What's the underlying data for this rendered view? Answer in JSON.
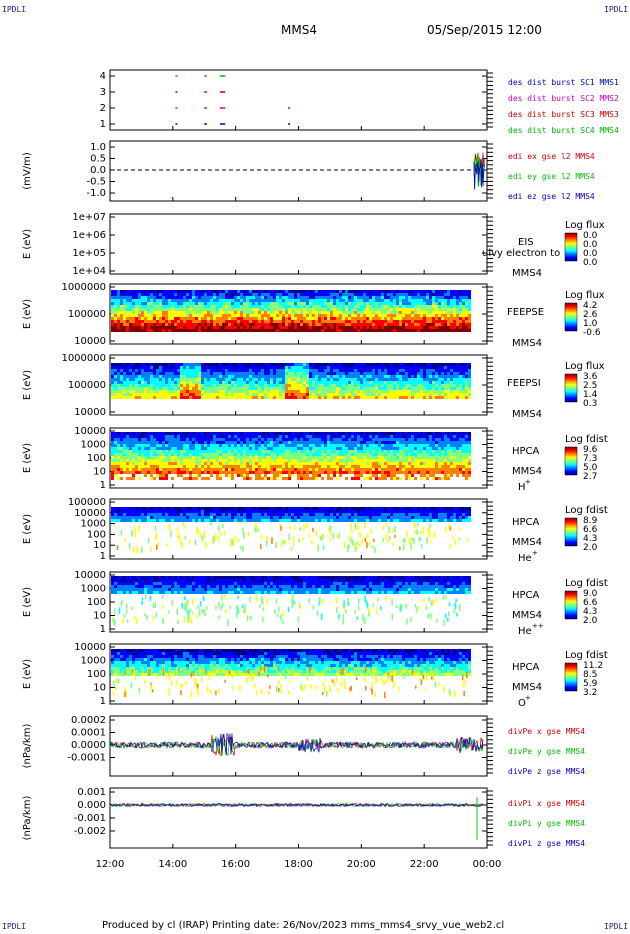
{
  "corners": {
    "tl": "IPDLI",
    "tr": "IPDLI",
    "bl": "IPDLI",
    "br": "IPDLI"
  },
  "header": {
    "spacecraft": "MMS4",
    "datetime": "05/Sep/2015 12:00"
  },
  "footer": {
    "text": "Produced by cl (IRAP)   Printing date: 26/Nov/2023   mms_mms4_srvy_vue_web2.cl"
  },
  "xaxis": {
    "ticks": [
      "12:00",
      "14:00",
      "16:00",
      "18:00",
      "20:00",
      "22:00",
      "00:00"
    ]
  },
  "colors": {
    "sc1": "#0000c0",
    "sc2": "#c000c0",
    "sc3": "#c00000",
    "sc4": "#00b000",
    "x": "#d00000",
    "y": "#00c000",
    "z": "#0000c0"
  },
  "panels": [
    {
      "id": "burst",
      "ticks": [
        "4",
        "3",
        "2",
        "1"
      ],
      "legend": [
        "des dist burst SC1 MMS1",
        "des dist burst SC2 MMS2",
        "des dist burst SC3 MMS3",
        "des dist burst SC4 MMS4"
      ]
    },
    {
      "id": "edi",
      "ylabel": "(mV/m)",
      "ticks": [
        "1.0",
        "0.5",
        "0.0",
        "-0.5",
        "-1.0"
      ],
      "legend": [
        "edi ex gse l2 MMS4",
        "edi ey gse l2 MMS4",
        "edi ez gse l2 MMS4"
      ]
    },
    {
      "id": "eis",
      "ylabel": "E (eV)",
      "ticks": [
        "1e+07",
        "1e+06",
        "1e+05",
        "1e+04"
      ],
      "name": "EIS",
      "extra": "MMS4",
      "overlay": "ulvy electron to",
      "cbar_title": "Log flux",
      "cbar_ticks": [
        "0.0",
        "0.0",
        "0.0",
        "0.0"
      ]
    },
    {
      "id": "feepse",
      "ylabel": "E (eV)",
      "ticks": [
        "1000000",
        "100000",
        "10000"
      ],
      "name": "FEEPSE",
      "extra": "MMS4",
      "cbar_title": "Log flux",
      "cbar_ticks": [
        "4.2",
        "2.6",
        "1.0",
        "-0.6"
      ]
    },
    {
      "id": "feepsi",
      "ylabel": "E (eV)",
      "ticks": [
        "1000000",
        "100000",
        "10000"
      ],
      "name": "FEEPSI",
      "extra": "MMS4",
      "cbar_title": "Log flux",
      "cbar_ticks": [
        "3.6",
        "2.5",
        "1.4",
        "0.3"
      ]
    },
    {
      "id": "hpca_h",
      "ylabel": "E (eV)",
      "ticks": [
        "10000",
        "1000",
        "100",
        "10",
        "1"
      ],
      "name": "HPCA",
      "extra": "MMS4",
      "species": "H",
      "charge": "+",
      "cbar_title": "Log fdist",
      "cbar_ticks": [
        "9.6",
        "7.3",
        "5.0",
        "2.7"
      ]
    },
    {
      "id": "hpca_he",
      "ylabel": "E (eV)",
      "ticks": [
        "100000",
        "10000",
        "1000",
        "100",
        "10",
        "1"
      ],
      "name": "HPCA",
      "extra": "MMS4",
      "species": "He",
      "charge": "+",
      "cbar_title": "Log fdist",
      "cbar_ticks": [
        "8.9",
        "6.6",
        "4.3",
        "2.0"
      ]
    },
    {
      "id": "hpca_hepp",
      "ylabel": "E (eV)",
      "ticks": [
        "10000",
        "1000",
        "100",
        "10",
        "1"
      ],
      "name": "HPCA",
      "extra": "MMS4",
      "species": "He",
      "charge": "++",
      "cbar_title": "Log fdist",
      "cbar_ticks": [
        "9.0",
        "6.6",
        "4.3",
        "2.0"
      ]
    },
    {
      "id": "hpca_o",
      "ylabel": "E (eV)",
      "ticks": [
        "10000",
        "1000",
        "100",
        "10",
        "1"
      ],
      "name": "HPCA",
      "extra": "MMS4",
      "species": "O",
      "charge": "+",
      "cbar_title": "Log fdist",
      "cbar_ticks": [
        "11.2",
        "8.5",
        "5.9",
        "3.2"
      ]
    },
    {
      "id": "divpe",
      "ylabel": "(nPa/km)",
      "ticks": [
        "0.0002",
        "0.0001",
        "0.0000",
        "-0.0001"
      ],
      "legend": [
        "divPe x gse MMS4",
        "divPe y gse MMS4",
        "divPe z gse MMS4"
      ]
    },
    {
      "id": "divpi",
      "ylabel": "(nPa/km)",
      "ticks": [
        "0.001",
        "0.000",
        "-0.001",
        "-0.002"
      ],
      "legend": [
        "divPi x gse MMS4",
        "divPi y gse MMS4",
        "divPi z gse MMS4"
      ]
    }
  ],
  "chart_data": {
    "type": "line",
    "xrange": [
      "05/Sep/2015 12:00",
      "06/Sep/2015 00:00"
    ],
    "burst_segments": [
      {
        "sc": 4,
        "start": "14:05",
        "end": "14:08"
      },
      {
        "sc": 4,
        "start": "15:00",
        "end": "15:05"
      },
      {
        "sc": 4,
        "start": "15:30",
        "end": "15:40"
      },
      {
        "sc": 3,
        "start": "14:05",
        "end": "14:08"
      },
      {
        "sc": 3,
        "start": "15:00",
        "end": "15:05"
      },
      {
        "sc": 3,
        "start": "15:30",
        "end": "15:40"
      },
      {
        "sc": 2,
        "start": "14:05",
        "end": "14:08"
      },
      {
        "sc": 2,
        "start": "15:00",
        "end": "15:05"
      },
      {
        "sc": 2,
        "start": "15:30",
        "end": "15:40"
      },
      {
        "sc": 2,
        "start": "17:40",
        "end": "17:42"
      },
      {
        "sc": 1,
        "start": "14:05",
        "end": "14:08"
      },
      {
        "sc": 1,
        "start": "15:00",
        "end": "15:05"
      },
      {
        "sc": 1,
        "start": "15:30",
        "end": "15:40"
      },
      {
        "sc": 1,
        "start": "17:40",
        "end": "17:42"
      }
    ],
    "edi_active": {
      "start": "23:35",
      "end": "23:59",
      "ylim": [
        -1.0,
        1.0
      ]
    },
    "feeps_gap_after": "23:30",
    "divpe_ylim": [
      -0.00015,
      0.0002
    ],
    "divpi_ylim": [
      -0.0025,
      0.001
    ]
  }
}
